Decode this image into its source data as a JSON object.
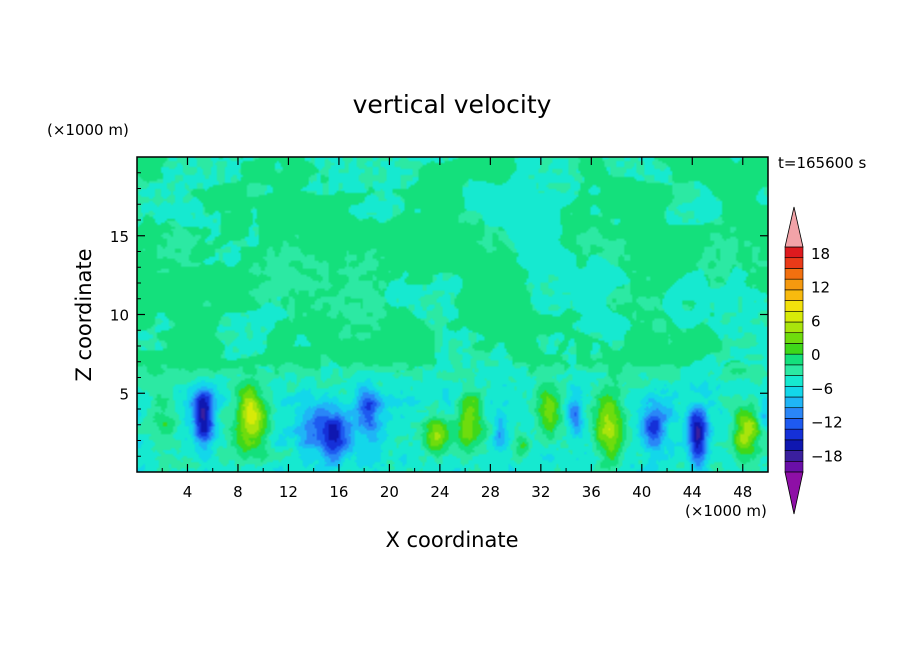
{
  "chart_data": {
    "type": "heatmap",
    "title": "vertical velocity",
    "xlabel": "X coordinate",
    "ylabel": "Z coordinate",
    "x_unit": "(×1000 m)",
    "y_unit": "(×1000 m)",
    "time_label": "t=165600 s",
    "xlim": [
      0,
      50
    ],
    "ylim": [
      0,
      20
    ],
    "x_ticks": [
      "4",
      "8",
      "12",
      "16",
      "20",
      "24",
      "28",
      "32",
      "36",
      "40",
      "44",
      "48"
    ],
    "y_ticks": [
      "5",
      "10",
      "15"
    ],
    "colorbar": {
      "labels": [
        "18",
        "12",
        "6",
        "0",
        "−6",
        "−12",
        "−18"
      ],
      "label_values": [
        18,
        12,
        6,
        0,
        -6,
        -12,
        -18
      ],
      "levels": [
        -20,
        -18,
        -16,
        -14,
        -12,
        -10,
        -8,
        -6,
        -4,
        -2,
        0,
        2,
        4,
        6,
        8,
        10,
        12,
        14,
        16,
        18,
        20
      ],
      "colors": [
        "#6a0fa8",
        "#3a1f9e",
        "#0f17b0",
        "#1530d8",
        "#1e5af0",
        "#2a86f7",
        "#1fb5f6",
        "#13d7ea",
        "#16e9d0",
        "#2ce9a3",
        "#14e07c",
        "#3ed81a",
        "#6fdc0d",
        "#a9e40c",
        "#d7ea08",
        "#f3e10c",
        "#f8ba0e",
        "#f5990f",
        "#f2700f",
        "#ea3a18",
        "#de1a1e"
      ],
      "under_color": "#8e0fa6",
      "over_color": "#f2a3a8"
    },
    "field": {
      "description_free": true,
      "background_value": 1,
      "upper_region_min": 1,
      "upper_patch_value": -2,
      "upper_patches": [
        {
          "x": 3,
          "z": 14,
          "sx": 2.5,
          "sz": 2.2,
          "a": -2
        },
        {
          "x": 12,
          "z": 12,
          "sx": 3.2,
          "sz": 3.0,
          "a": -2.4
        },
        {
          "x": 18,
          "z": 11,
          "sx": 2.5,
          "sz": 3.5,
          "a": -2.4
        },
        {
          "x": 29,
          "z": 16,
          "sx": 4.0,
          "sz": 3.0,
          "a": -2.2
        },
        {
          "x": 37,
          "z": 13,
          "sx": 3.0,
          "sz": 3.5,
          "a": -2.4
        },
        {
          "x": 47,
          "z": 14,
          "sx": 3.0,
          "sz": 3.0,
          "a": -2.2
        },
        {
          "x": 42,
          "z": 10,
          "sx": 2.5,
          "sz": 2.0,
          "a": -2
        }
      ],
      "lower_cells": [
        {
          "x": 2.0,
          "z": 3.5,
          "sx": 1.2,
          "sz": 1.8,
          "a": 4
        },
        {
          "x": 5.3,
          "z": 3.6,
          "sx": 0.8,
          "sz": 1.9,
          "a": -13
        },
        {
          "x": 9.0,
          "z": 3.4,
          "sx": 1.3,
          "sz": 2.1,
          "a": 11.5
        },
        {
          "x": 15.5,
          "z": 2.5,
          "sx": 1.5,
          "sz": 1.7,
          "a": -11
        },
        {
          "x": 18.3,
          "z": 3.9,
          "sx": 1.0,
          "sz": 1.5,
          "a": -9
        },
        {
          "x": 13.5,
          "z": 2.8,
          "sx": 1.0,
          "sz": 1.2,
          "a": -5
        },
        {
          "x": 19.5,
          "z": 7.5,
          "sx": 0.4,
          "sz": 0.9,
          "a": 5
        },
        {
          "x": 23.8,
          "z": 2.4,
          "sx": 1.0,
          "sz": 1.4,
          "a": 8
        },
        {
          "x": 26.4,
          "z": 3.3,
          "sx": 1.0,
          "sz": 2.0,
          "a": 9
        },
        {
          "x": 28.8,
          "z": 2.6,
          "sx": 0.5,
          "sz": 1.0,
          "a": -6
        },
        {
          "x": 32.6,
          "z": 3.9,
          "sx": 1.0,
          "sz": 1.7,
          "a": 8.5
        },
        {
          "x": 30.6,
          "z": 1.5,
          "sx": 0.6,
          "sz": 1.0,
          "a": 5
        },
        {
          "x": 34.7,
          "z": 3.6,
          "sx": 0.6,
          "sz": 1.4,
          "a": -7
        },
        {
          "x": 37.5,
          "z": 2.8,
          "sx": 1.2,
          "sz": 2.2,
          "a": 10
        },
        {
          "x": 41.0,
          "z": 3.0,
          "sx": 1.0,
          "sz": 1.3,
          "a": -9
        },
        {
          "x": 44.4,
          "z": 2.4,
          "sx": 0.8,
          "sz": 1.7,
          "a": -13
        },
        {
          "x": 48.3,
          "z": 2.4,
          "sx": 1.1,
          "sz": 1.5,
          "a": 10
        },
        {
          "x": 49.7,
          "z": 3.6,
          "sx": 0.5,
          "sz": 1.0,
          "a": -5
        }
      ],
      "lower_region_value": -3,
      "lower_region_top": 6
    }
  }
}
